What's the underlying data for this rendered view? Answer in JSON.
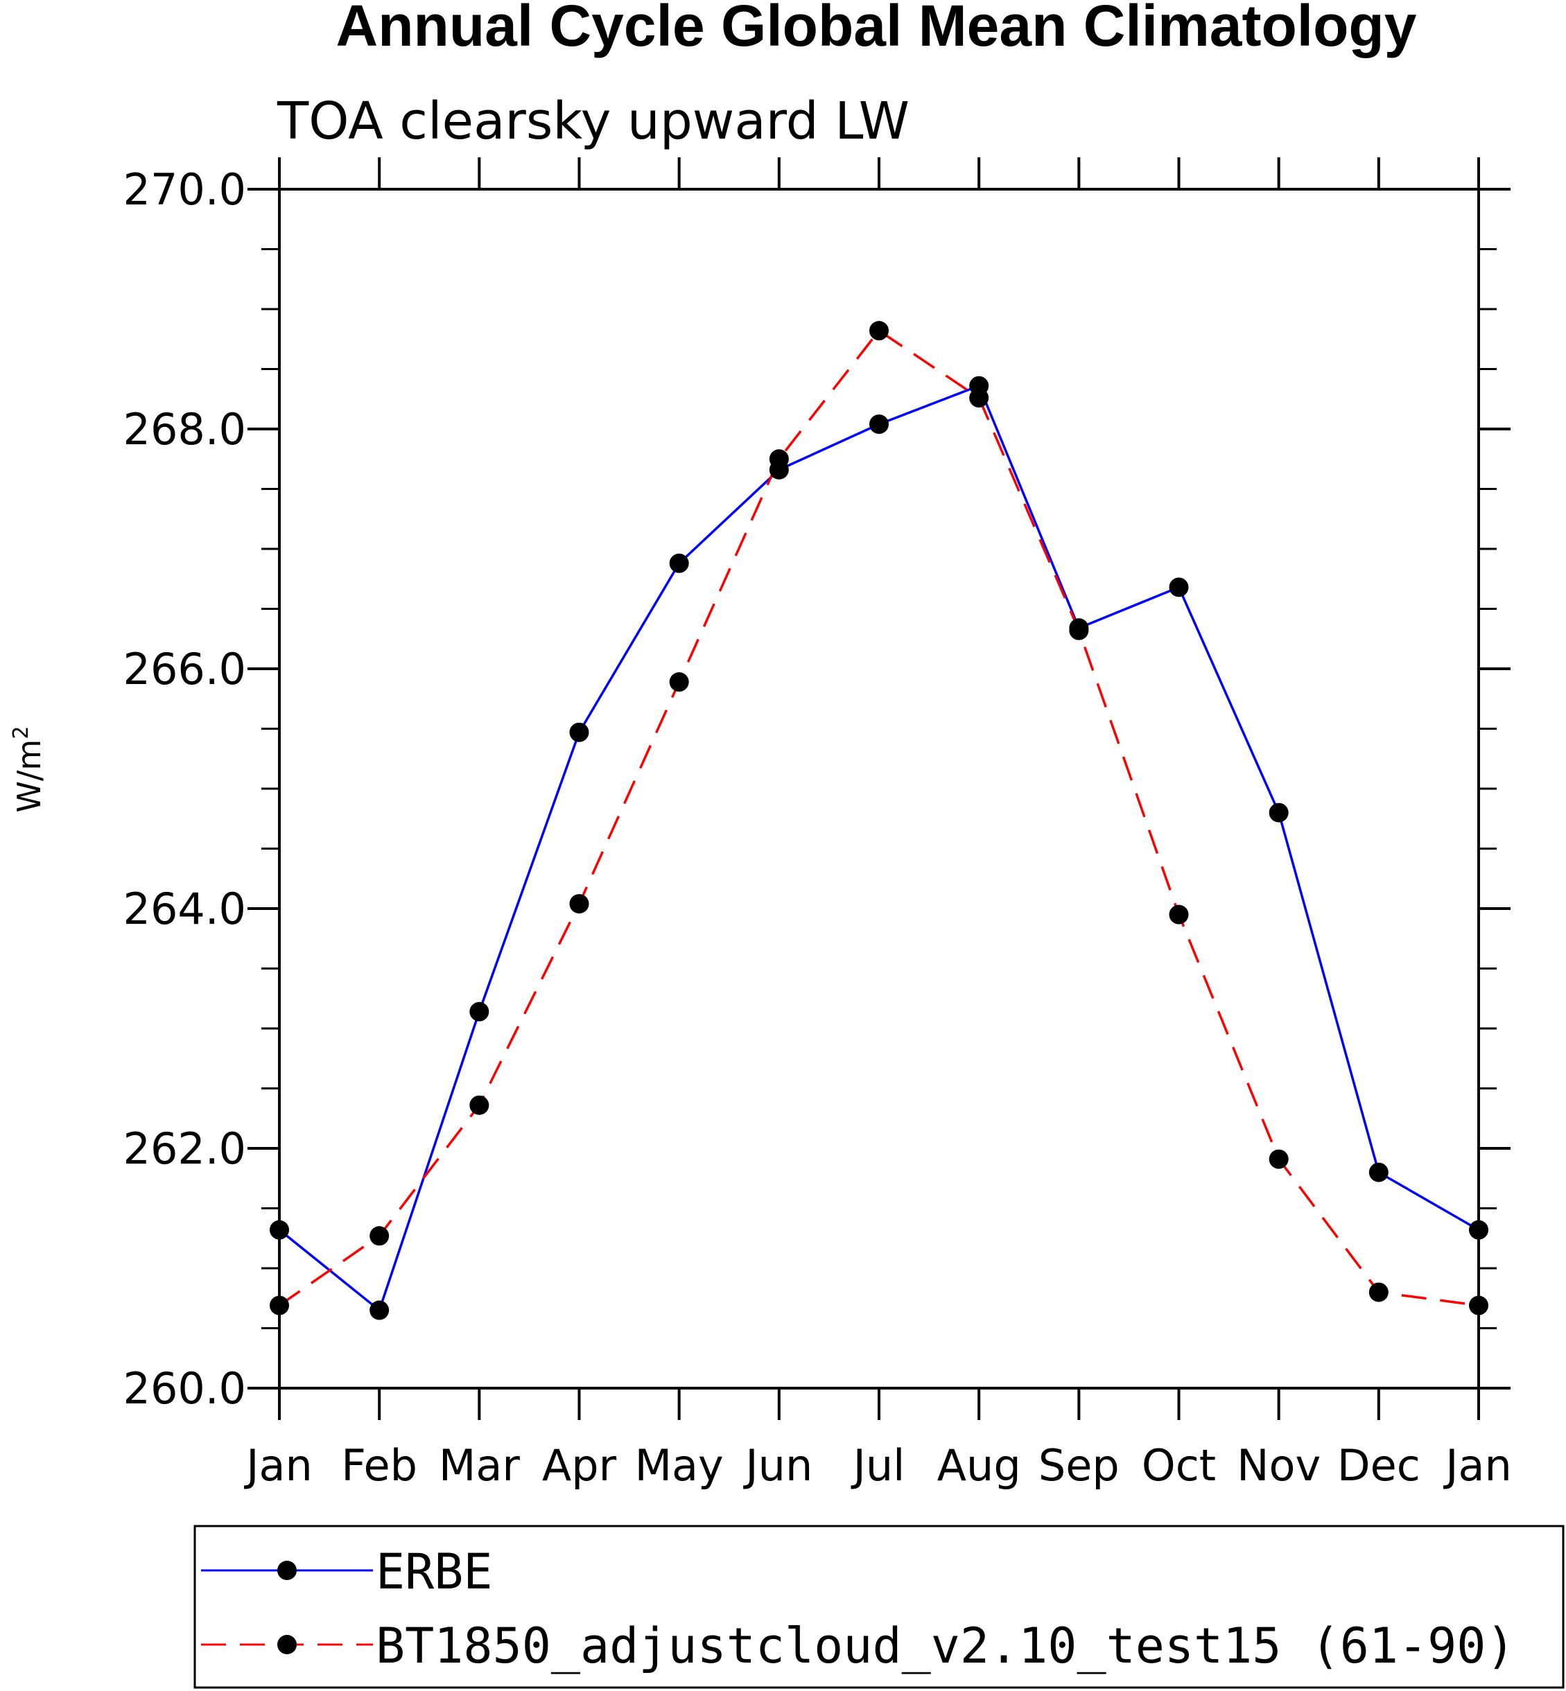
{
  "chart_data": {
    "type": "line",
    "title": "Annual Cycle Global Mean Climatology",
    "subtitle": "TOA clearsky upward LW",
    "ylabel": "W/m",
    "ylabel_superscript": "2",
    "ylim": [
      260.0,
      270.0
    ],
    "yticks_major": [
      "260.0",
      "262.0",
      "264.0",
      "266.0",
      "268.0",
      "270.0"
    ],
    "categories": [
      "Jan",
      "Feb",
      "Mar",
      "Apr",
      "May",
      "Jun",
      "Jul",
      "Aug",
      "Sep",
      "Oct",
      "Nov",
      "Dec",
      "Jan"
    ],
    "grid": false,
    "legend_position": "bottom",
    "series": [
      {
        "name": "ERBE",
        "color": "#0000ff",
        "dash": "solid",
        "marker": "filled-circle",
        "values": [
          261.32,
          260.65,
          263.14,
          265.47,
          266.88,
          267.66,
          268.04,
          268.36,
          266.34,
          266.68,
          264.8,
          261.8,
          261.32
        ]
      },
      {
        "name": "BT1850_adjustcloud_v2.10_test15 (61-90)",
        "color": "#ff0000",
        "dash": "dashed",
        "marker": "filled-circle",
        "values": [
          260.69,
          261.27,
          262.36,
          264.04,
          265.89,
          267.75,
          268.82,
          268.26,
          266.32,
          263.95,
          261.91,
          260.8,
          260.69
        ]
      }
    ]
  }
}
